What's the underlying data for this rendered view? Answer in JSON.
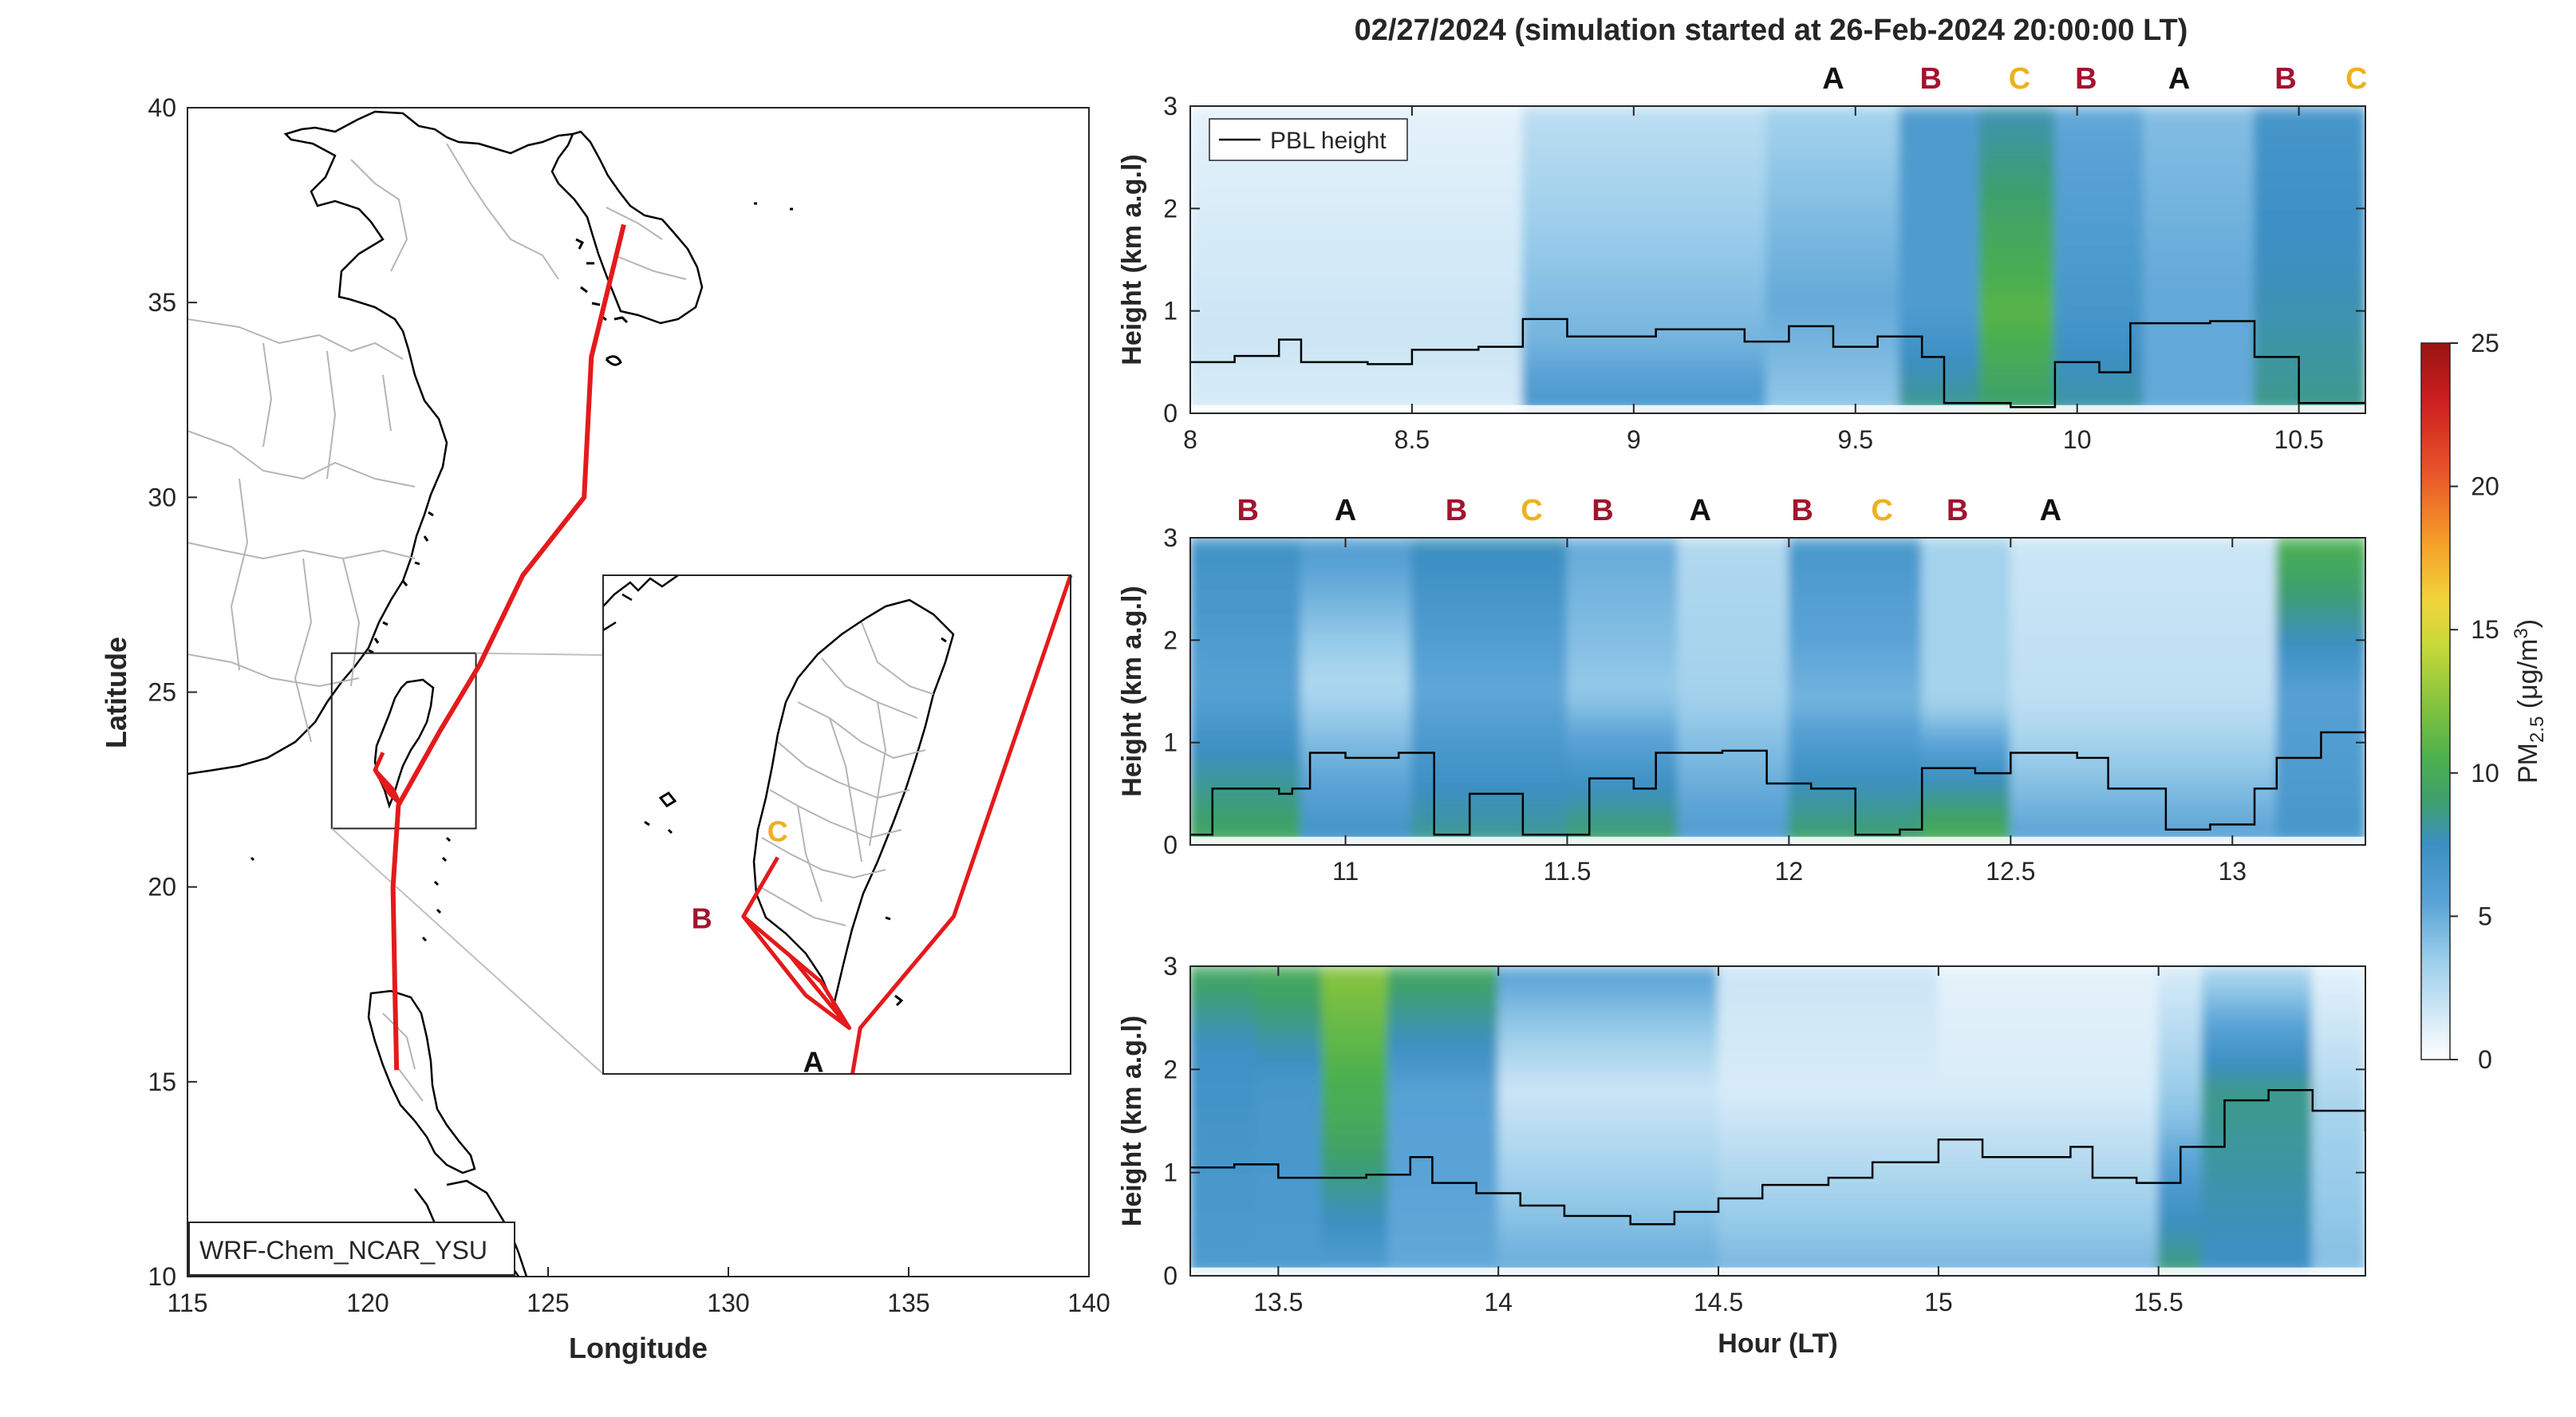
{
  "title": "02/27/2024 (simulation started at 26-Feb-2024 20:00:00 LT)",
  "colors": {
    "track": "#e41a1c",
    "label_A": "#111111",
    "label_B": "#a2142f",
    "label_C": "#edb120",
    "pbl": "#000000",
    "colormap": [
      "#ffffff",
      "#cde6f6",
      "#9acdea",
      "#5aa3d6",
      "#3c8fc4",
      "#3e9f6e",
      "#4cb04e",
      "#88c43f",
      "#c9d93a",
      "#f1d43a",
      "#f5a02a",
      "#e8542a",
      "#cc1f1f",
      "#991313"
    ]
  },
  "chart_data": [
    {
      "type": "map",
      "name": "trajectory-map",
      "xlabel": "Longitude",
      "ylabel": "Latitude",
      "xlim": [
        115,
        140
      ],
      "ylim": [
        10,
        40
      ],
      "xticks": [
        115,
        120,
        125,
        130,
        135,
        140
      ],
      "yticks": [
        10,
        15,
        20,
        25,
        30,
        35,
        40
      ],
      "model_label": "WRF-Chem_NCAR_YSU",
      "track": [
        [
          127.1,
          37.0
        ],
        [
          126.2,
          33.6
        ],
        [
          126.0,
          30.0
        ],
        [
          124.3,
          28.0
        ],
        [
          123.1,
          25.7
        ],
        [
          122.0,
          24.0
        ],
        [
          120.85,
          22.1
        ],
        [
          120.7,
          20.0
        ],
        [
          120.75,
          17.5
        ],
        [
          120.8,
          15.3
        ]
      ],
      "inset_box": {
        "lon": [
          119,
          123
        ],
        "lat": [
          21.5,
          26
        ]
      },
      "inset": {
        "xlim": [
          119.3,
          122.3
        ],
        "ylim": [
          21.8,
          25.6
        ],
        "track": [
          [
            122.3,
            25.6
          ],
          [
            121.55,
            23.0
          ],
          [
            120.95,
            22.15
          ],
          [
            120.9,
            21.8
          ]
        ],
        "inner_track": [
          [
            120.42,
            23.45
          ],
          [
            120.2,
            23.0
          ],
          [
            120.6,
            22.4
          ],
          [
            120.88,
            22.15
          ],
          [
            120.5,
            22.7
          ],
          [
            120.2,
            23.0
          ],
          [
            120.7,
            22.5
          ],
          [
            120.88,
            22.15
          ]
        ],
        "points": [
          {
            "label": "A",
            "lon": 120.88,
            "lat": 22.15
          },
          {
            "label": "B",
            "lon": 120.2,
            "lat": 23.0
          },
          {
            "label": "C",
            "lon": 120.42,
            "lat": 23.45
          }
        ]
      }
    },
    {
      "type": "heatmap",
      "name": "curtain-1",
      "xlim": [
        8,
        10.65
      ],
      "ylim": [
        0,
        3
      ],
      "xticks": [
        8,
        8.5,
        9,
        9.5,
        10,
        10.5
      ],
      "yticks": [
        0,
        1,
        2,
        3
      ],
      "ylabel": "Height (km a.g.l)",
      "legend": "PBL height",
      "markers": [
        {
          "x": 9.45,
          "label": "A"
        },
        {
          "x": 9.67,
          "label": "B"
        },
        {
          "x": 9.87,
          "label": "C"
        },
        {
          "x": 10.02,
          "label": "B"
        },
        {
          "x": 10.23,
          "label": "A"
        },
        {
          "x": 10.47,
          "label": "B"
        },
        {
          "x": 10.63,
          "label": "C"
        }
      ],
      "pbl": [
        [
          8.0,
          0.5
        ],
        [
          8.1,
          0.56
        ],
        [
          8.2,
          0.72
        ],
        [
          8.25,
          0.5
        ],
        [
          8.4,
          0.48
        ],
        [
          8.5,
          0.62
        ],
        [
          8.65,
          0.65
        ],
        [
          8.75,
          0.92
        ],
        [
          8.85,
          0.75
        ],
        [
          9.05,
          0.82
        ],
        [
          9.25,
          0.7
        ],
        [
          9.35,
          0.85
        ],
        [
          9.45,
          0.65
        ],
        [
          9.55,
          0.75
        ],
        [
          9.65,
          0.55
        ],
        [
          9.7,
          0.1
        ],
        [
          9.85,
          0.06
        ],
        [
          9.95,
          0.5
        ],
        [
          10.05,
          0.4
        ],
        [
          10.12,
          0.88
        ],
        [
          10.3,
          0.9
        ],
        [
          10.4,
          0.55
        ],
        [
          10.5,
          0.1
        ],
        [
          10.65,
          0.12
        ]
      ],
      "columns": [
        {
          "x0": 8.0,
          "x1": 8.75,
          "ground": 1.5,
          "mid": 2.0,
          "mid_y": 0.8,
          "upper": 1.0
        },
        {
          "x0": 8.75,
          "x1": 9.3,
          "ground": 7.0,
          "mid": 5.0,
          "mid_y": 0.7,
          "upper": 2.5
        },
        {
          "x0": 9.3,
          "x1": 9.6,
          "ground": 4.0,
          "mid": 5.5,
          "mid_y": 1.1,
          "upper": 3.5
        },
        {
          "x0": 9.6,
          "x1": 9.78,
          "ground": 9.0,
          "mid": 6.5,
          "mid_y": 1.0,
          "upper": 6.5
        },
        {
          "x0": 9.78,
          "x1": 9.95,
          "ground": 9.5,
          "mid": 12.0,
          "mid_y": 1.0,
          "upper": 8.0
        },
        {
          "x0": 9.95,
          "x1": 10.15,
          "ground": 8.5,
          "mid": 7.0,
          "mid_y": 1.0,
          "upper": 5.5
        },
        {
          "x0": 10.15,
          "x1": 10.4,
          "ground": 5.5,
          "mid": 5.5,
          "mid_y": 1.2,
          "upper": 4.5
        },
        {
          "x0": 10.4,
          "x1": 10.65,
          "ground": 9.0,
          "mid": 8.0,
          "mid_y": 1.1,
          "upper": 7.0
        }
      ]
    },
    {
      "type": "heatmap",
      "name": "curtain-2",
      "xlim": [
        10.65,
        13.3
      ],
      "ylim": [
        0,
        3
      ],
      "xticks": [
        11,
        11.5,
        12,
        12.5,
        13
      ],
      "yticks": [
        0,
        1,
        2,
        3
      ],
      "ylabel": "Height (km a.g.l)",
      "markers": [
        {
          "x": 10.78,
          "label": "B"
        },
        {
          "x": 11.0,
          "label": "A"
        },
        {
          "x": 11.25,
          "label": "B"
        },
        {
          "x": 11.42,
          "label": "C"
        },
        {
          "x": 11.58,
          "label": "B"
        },
        {
          "x": 11.8,
          "label": "A"
        },
        {
          "x": 12.03,
          "label": "B"
        },
        {
          "x": 12.21,
          "label": "C"
        },
        {
          "x": 12.38,
          "label": "B"
        },
        {
          "x": 12.59,
          "label": "A"
        }
      ],
      "pbl": [
        [
          10.65,
          0.1
        ],
        [
          10.7,
          0.55
        ],
        [
          10.85,
          0.5
        ],
        [
          10.88,
          0.55
        ],
        [
          10.92,
          0.9
        ],
        [
          11.0,
          0.85
        ],
        [
          11.12,
          0.9
        ],
        [
          11.2,
          0.1
        ],
        [
          11.28,
          0.5
        ],
        [
          11.4,
          0.1
        ],
        [
          11.5,
          0.1
        ],
        [
          11.55,
          0.65
        ],
        [
          11.65,
          0.55
        ],
        [
          11.7,
          0.9
        ],
        [
          11.85,
          0.92
        ],
        [
          11.95,
          0.6
        ],
        [
          12.05,
          0.55
        ],
        [
          12.15,
          0.1
        ],
        [
          12.25,
          0.15
        ],
        [
          12.3,
          0.75
        ],
        [
          12.42,
          0.7
        ],
        [
          12.5,
          0.9
        ],
        [
          12.65,
          0.85
        ],
        [
          12.72,
          0.55
        ],
        [
          12.85,
          0.15
        ],
        [
          12.95,
          0.2
        ],
        [
          13.05,
          0.55
        ],
        [
          13.1,
          0.85
        ],
        [
          13.2,
          1.1
        ],
        [
          13.3,
          1.05
        ]
      ],
      "columns": [
        {
          "x0": 10.65,
          "x1": 10.9,
          "ground": 10.5,
          "mid": 6.0,
          "mid_y": 1.5,
          "upper": 7.5
        },
        {
          "x0": 10.9,
          "x1": 11.15,
          "ground": 7.5,
          "mid": 3.0,
          "mid_y": 1.6,
          "upper": 6.5
        },
        {
          "x0": 11.15,
          "x1": 11.5,
          "ground": 9.0,
          "mid": 5.5,
          "mid_y": 1.5,
          "upper": 8.0
        },
        {
          "x0": 11.5,
          "x1": 11.75,
          "ground": 10.0,
          "mid": 4.0,
          "mid_y": 1.5,
          "upper": 5.5
        },
        {
          "x0": 11.75,
          "x1": 12.0,
          "ground": 6.5,
          "mid": 3.5,
          "mid_y": 1.5,
          "upper": 3.0
        },
        {
          "x0": 12.0,
          "x1": 12.3,
          "ground": 10.0,
          "mid": 5.0,
          "mid_y": 1.4,
          "upper": 7.0
        },
        {
          "x0": 12.3,
          "x1": 12.5,
          "ground": 11.5,
          "mid": 3.5,
          "mid_y": 1.4,
          "upper": 3.5
        },
        {
          "x0": 12.5,
          "x1": 13.1,
          "ground": 6.0,
          "mid": 2.5,
          "mid_y": 1.4,
          "upper": 2.0
        },
        {
          "x0": 13.1,
          "x1": 13.3,
          "ground": 7.0,
          "mid": 6.0,
          "mid_y": 1.5,
          "upper": 11.5
        }
      ]
    },
    {
      "type": "heatmap",
      "name": "curtain-3",
      "xlim": [
        13.3,
        15.97
      ],
      "ylim": [
        0,
        3
      ],
      "xticks": [
        13.5,
        14,
        14.5,
        15,
        15.5
      ],
      "yticks": [
        0,
        1,
        2,
        3
      ],
      "xlabel": "Hour (LT)",
      "ylabel": "Height (km a.g.l)",
      "pbl": [
        [
          13.3,
          1.05
        ],
        [
          13.4,
          1.08
        ],
        [
          13.5,
          0.95
        ],
        [
          13.7,
          0.98
        ],
        [
          13.8,
          1.15
        ],
        [
          13.85,
          0.9
        ],
        [
          13.95,
          0.8
        ],
        [
          14.05,
          0.68
        ],
        [
          14.15,
          0.58
        ],
        [
          14.3,
          0.5
        ],
        [
          14.4,
          0.62
        ],
        [
          14.5,
          0.75
        ],
        [
          14.6,
          0.88
        ],
        [
          14.75,
          0.95
        ],
        [
          14.85,
          1.1
        ],
        [
          15.0,
          1.32
        ],
        [
          15.1,
          1.15
        ],
        [
          15.3,
          1.25
        ],
        [
          15.35,
          0.95
        ],
        [
          15.45,
          0.9
        ],
        [
          15.55,
          1.25
        ],
        [
          15.65,
          1.7
        ],
        [
          15.75,
          1.8
        ],
        [
          15.85,
          1.6
        ],
        [
          15.97,
          1.4
        ]
      ],
      "columns": [
        {
          "x0": 13.3,
          "x1": 13.45,
          "ground": 6.5,
          "mid": 7.5,
          "mid_y": 2.2,
          "upper": 10.5
        },
        {
          "x0": 13.45,
          "x1": 13.6,
          "ground": 6.5,
          "mid": 7.0,
          "mid_y": 1.9,
          "upper": 11.0
        },
        {
          "x0": 13.6,
          "x1": 13.75,
          "ground": 6.0,
          "mid": 10.5,
          "mid_y": 1.4,
          "upper": 13.5
        },
        {
          "x0": 13.75,
          "x1": 14.0,
          "ground": 5.5,
          "mid": 6.0,
          "mid_y": 1.8,
          "upper": 10.5
        },
        {
          "x0": 14.0,
          "x1": 14.5,
          "ground": 5.5,
          "mid": 2.0,
          "mid_y": 1.8,
          "upper": 6.0
        },
        {
          "x0": 14.5,
          "x1": 15.0,
          "ground": 5.0,
          "mid": 1.5,
          "mid_y": 1.8,
          "upper": 2.0
        },
        {
          "x0": 15.0,
          "x1": 15.5,
          "ground": 5.0,
          "mid": 1.5,
          "mid_y": 1.8,
          "upper": 1.0
        },
        {
          "x0": 15.5,
          "x1": 15.6,
          "ground": 9.5,
          "mid": 4.5,
          "mid_y": 1.5,
          "upper": 1.5
        },
        {
          "x0": 15.6,
          "x1": 15.85,
          "ground": 7.5,
          "mid": 9.0,
          "mid_y": 1.8,
          "upper": 3.0
        },
        {
          "x0": 15.85,
          "x1": 15.97,
          "ground": 4.5,
          "mid": 3.5,
          "mid_y": 1.5,
          "upper": 1.0
        }
      ]
    },
    {
      "type": "colorbar",
      "name": "pm25-colorbar",
      "label": "PM",
      "label_sub": "2.5",
      "label_unit": " (μg/m",
      "label_sup": "3",
      "label_close": ")",
      "clim": [
        0,
        25
      ],
      "ticks": [
        0,
        5,
        10,
        15,
        20,
        25
      ]
    }
  ]
}
